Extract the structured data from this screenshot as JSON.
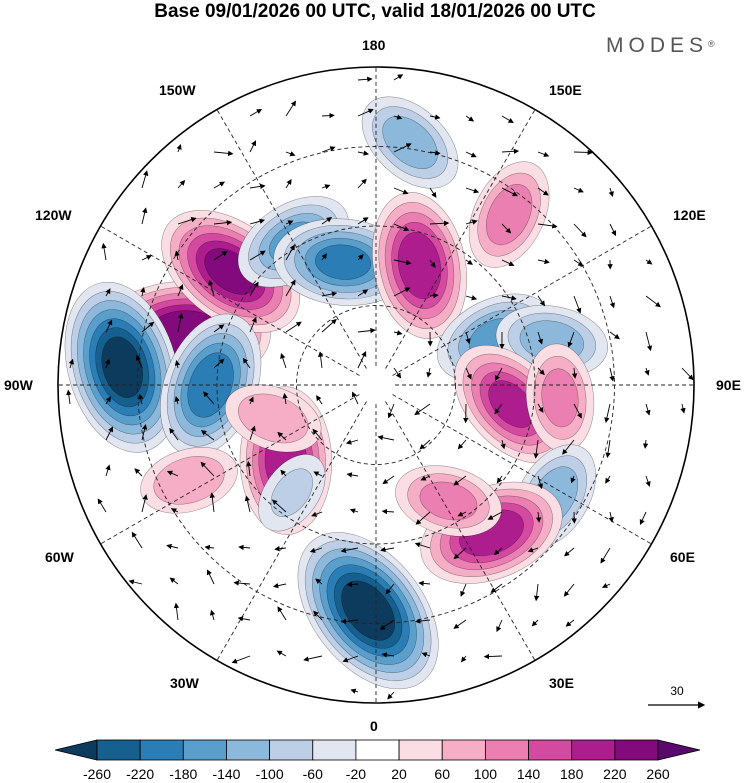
{
  "title": "Base 09/01/2026 00 UTC, valid 18/01/2026 00 UTC",
  "brand": {
    "name": "MODES",
    "mark": "®"
  },
  "longitude_labels": {
    "top": "180",
    "bottom": "0",
    "left": "90W",
    "right": "90E",
    "upper_left_1": "150W",
    "upper_left_2": "120W",
    "upper_right_1": "150E",
    "upper_right_2": "120E",
    "lower_left_1": "60W",
    "lower_left_2": "30W",
    "lower_right_1": "60E",
    "lower_right_2": "30E"
  },
  "reference_vector": {
    "value": "30"
  },
  "colorbar": {
    "labels": [
      "-260",
      "-220",
      "-180",
      "-140",
      "-100",
      "-60",
      "-20",
      "20",
      "60",
      "100",
      "140",
      "180",
      "220",
      "260"
    ],
    "colors": [
      "#0d3b5e",
      "#15608e",
      "#2a7db5",
      "#5a9fcc",
      "#8cb8dc",
      "#bccfe6",
      "#e2e6f1",
      "#ffffff",
      "#fbdde4",
      "#f5aec6",
      "#ec7fb1",
      "#d44aa0",
      "#ad1d8e",
      "#820a7c",
      "#5a0a6d"
    ]
  },
  "anomalies": [
    {
      "lon": -105,
      "r": 0.62,
      "value": 250
    },
    {
      "lon": -128,
      "r": 0.58,
      "value": 220
    },
    {
      "lon": -94,
      "r": 0.8,
      "value": -260
    },
    {
      "lon": -90,
      "r": 0.52,
      "value": -200
    },
    {
      "lon": -150,
      "r": 0.52,
      "value": -140
    },
    {
      "lon": -165,
      "r": 0.4,
      "value": -180
    },
    {
      "lon": 172,
      "r": 0.77,
      "value": -120
    },
    {
      "lon": 160,
      "r": 0.4,
      "value": 200
    },
    {
      "lon": 142,
      "r": 0.68,
      "value": 120
    },
    {
      "lon": 112,
      "r": 0.4,
      "value": -140
    },
    {
      "lon": 104,
      "r": 0.57,
      "value": -120
    },
    {
      "lon": 82,
      "r": 0.43,
      "value": 180
    },
    {
      "lon": 86,
      "r": 0.58,
      "value": 110
    },
    {
      "lon": 58,
      "r": 0.66,
      "value": -120
    },
    {
      "lon": 38,
      "r": 0.59,
      "value": 200
    },
    {
      "lon": 32,
      "r": 0.43,
      "value": 110
    },
    {
      "lon": -2,
      "r": 0.71,
      "value": -270
    },
    {
      "lon": -50,
      "r": 0.37,
      "value": 200
    },
    {
      "lon": -38,
      "r": 0.43,
      "value": -60
    },
    {
      "lon": -63,
      "r": 0.66,
      "value": 90
    },
    {
      "lon": -72,
      "r": 0.34,
      "value": 90
    }
  ]
}
